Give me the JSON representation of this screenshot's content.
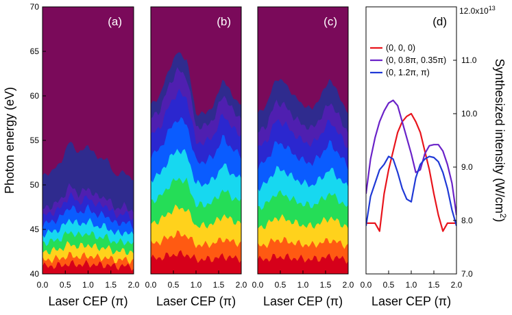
{
  "chart_data": [
    {
      "type": "heatmap",
      "panel_label": "(a)",
      "xlabel": "Laser CEP (π)",
      "ylabel": "Photon energy (eV)",
      "xlim": [
        0.0,
        2.0
      ],
      "ylim": [
        40,
        70
      ],
      "x_ticks": [
        "0.0",
        "0.5",
        "1.0",
        "1.5",
        "2.0"
      ],
      "y_ticks": [
        "40",
        "45",
        "50",
        "55",
        "60",
        "65",
        "70"
      ],
      "background_color": "#7a0a5a",
      "level_colors": [
        "#d6001a",
        "#ff5a12",
        "#ffd21c",
        "#25dd57",
        "#17d8f0",
        "#0a5cff",
        "#2b27cf",
        "#4f1fb0",
        "#2f2b8e"
      ],
      "cutoff_x": [
        0.0,
        0.2,
        0.4,
        0.6,
        0.8,
        1.0,
        1.2,
        1.4,
        1.6,
        1.8,
        2.0
      ],
      "cutoff_eV": [
        51,
        51.5,
        52.5,
        55,
        53.5,
        54.5,
        53,
        53,
        51,
        51.5,
        50.5
      ],
      "intensity_scale": 0.35
    },
    {
      "type": "heatmap",
      "panel_label": "(b)",
      "xlabel": "Laser CEP (π)",
      "xlim": [
        0.0,
        2.0
      ],
      "ylim": [
        40,
        70
      ],
      "x_ticks": [
        "0.0",
        "0.5",
        "1.0",
        "1.5",
        "2.0"
      ],
      "cutoff_x": [
        0.0,
        0.2,
        0.4,
        0.6,
        0.8,
        1.0,
        1.2,
        1.4,
        1.6,
        1.8,
        2.0
      ],
      "cutoff_eV": [
        59,
        60,
        63,
        65,
        64,
        58,
        58,
        59,
        62,
        60,
        59
      ],
      "intensity_scale": 1.0
    },
    {
      "type": "heatmap",
      "panel_label": "(c)",
      "xlabel": "Laser CEP (π)",
      "xlim": [
        0.0,
        2.0
      ],
      "ylim": [
        40,
        70
      ],
      "x_ticks": [
        "0.0",
        "0.5",
        "1.0",
        "1.5",
        "2.0"
      ],
      "cutoff_x": [
        0.0,
        0.2,
        0.4,
        0.6,
        0.8,
        1.0,
        1.2,
        1.4,
        1.6,
        1.8,
        2.0
      ],
      "cutoff_eV": [
        58,
        59,
        62,
        61.5,
        60,
        59,
        58.5,
        60,
        62,
        60,
        58
      ],
      "intensity_scale": 0.9
    },
    {
      "type": "line",
      "panel_label": "(d)",
      "xlabel": "Laser CEP (π)",
      "ylabel": "Synthesized intensity (W/cm²)",
      "ylabel_main": "Synthesized intensity (W/cm",
      "ylabel_sup": "2",
      "ylabel_close": ")",
      "xlim": [
        0.0,
        2.0
      ],
      "ylim": [
        7.0,
        12.0
      ],
      "x_ticks": [
        "0.0",
        "0.5",
        "1.0",
        "1.5",
        "2.0"
      ],
      "y_ticks": [
        "7.0",
        "8.0",
        "9.0",
        "10.0",
        "11.0"
      ],
      "y_top_tick_base": "12.0x10",
      "y_top_tick_exp": "13",
      "legend_position": "top-left",
      "series": [
        {
          "name": "(0, 0, 0)",
          "color": "#e8141c",
          "x": [
            0.0,
            0.1,
            0.2,
            0.3,
            0.4,
            0.5,
            0.6,
            0.7,
            0.8,
            0.9,
            1.0,
            1.1,
            1.2,
            1.3,
            1.4,
            1.5,
            1.6,
            1.7,
            1.8,
            1.9,
            2.0
          ],
          "y": [
            7.95,
            7.95,
            7.95,
            7.8,
            8.5,
            8.95,
            9.3,
            9.65,
            9.85,
            9.95,
            10.0,
            9.85,
            9.65,
            9.3,
            8.95,
            8.5,
            8.1,
            7.8,
            7.95,
            7.95,
            7.95
          ]
        },
        {
          "name": "(0, 0.8π, 0.35π)",
          "color": "#6a22c8",
          "x": [
            0.0,
            0.1,
            0.2,
            0.3,
            0.4,
            0.5,
            0.6,
            0.7,
            0.8,
            0.9,
            1.0,
            1.1,
            1.2,
            1.3,
            1.4,
            1.5,
            1.6,
            1.7,
            1.8,
            1.9,
            2.0
          ],
          "y": [
            8.5,
            9.15,
            9.55,
            9.85,
            10.05,
            10.2,
            10.25,
            10.15,
            9.85,
            9.55,
            9.25,
            8.9,
            8.95,
            9.25,
            9.4,
            9.42,
            9.42,
            9.3,
            9.05,
            8.7,
            8.1
          ]
        },
        {
          "name": "(0, 1.2π, π)",
          "color": "#1f39d6",
          "x": [
            0.0,
            0.1,
            0.2,
            0.3,
            0.4,
            0.5,
            0.6,
            0.7,
            0.8,
            0.9,
            1.0,
            1.1,
            1.2,
            1.3,
            1.4,
            1.5,
            1.6,
            1.7,
            1.8,
            1.9,
            2.0
          ],
          "y": [
            7.9,
            8.45,
            8.7,
            8.95,
            9.05,
            9.2,
            9.15,
            8.9,
            8.6,
            8.4,
            8.35,
            8.8,
            9.05,
            9.15,
            9.2,
            9.18,
            9.1,
            8.9,
            8.6,
            8.2,
            7.9
          ]
        }
      ]
    }
  ]
}
